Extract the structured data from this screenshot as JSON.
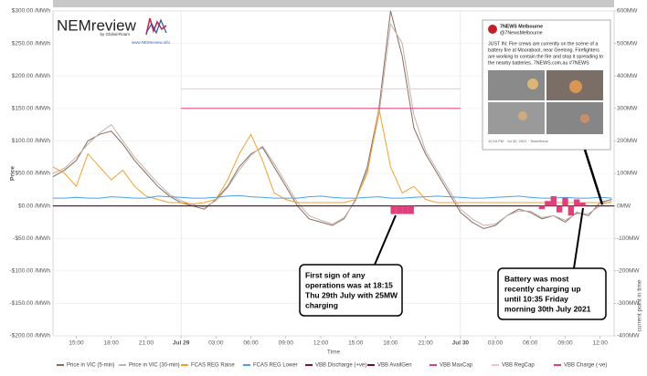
{
  "chart_data": {
    "type": "line",
    "ylabel": "Price",
    "xlabel": "Time",
    "marker_label": "current point in time",
    "xlim": [
      13,
      61.2
    ],
    "xticks": [
      {
        "value": 15,
        "label": "15:00"
      },
      {
        "value": 18,
        "label": "18:00"
      },
      {
        "value": 21,
        "label": "21:00"
      },
      {
        "value": 24,
        "label": "Jul 29"
      },
      {
        "value": 27,
        "label": "03:00"
      },
      {
        "value": 30,
        "label": "06:00"
      },
      {
        "value": 33,
        "label": "09:00"
      },
      {
        "value": 36,
        "label": "12:00"
      },
      {
        "value": 39,
        "label": "15:00"
      },
      {
        "value": 42,
        "label": "18:00"
      },
      {
        "value": 45,
        "label": "21:00"
      },
      {
        "value": 48,
        "label": "Jul 30"
      },
      {
        "value": 51,
        "label": "03:00"
      },
      {
        "value": 54,
        "label": "06:00"
      },
      {
        "value": 57,
        "label": "09:00"
      },
      {
        "value": 60,
        "label": "12:00"
      }
    ],
    "ylim": [
      -200,
      300
    ],
    "yticks": [
      {
        "value": 300,
        "label": "$300.00 /MWh"
      },
      {
        "value": 250,
        "label": "$250.00 /MWh"
      },
      {
        "value": 200,
        "label": "$200.00 /MWh"
      },
      {
        "value": 150,
        "label": "$150.00 /MWh"
      },
      {
        "value": 100,
        "label": "$100.00 /MWh"
      },
      {
        "value": 50,
        "label": "$50.00 /MWh"
      },
      {
        "value": 0,
        "label": "$0.00 /MWh"
      },
      {
        "value": -50,
        "label": "-$50.00 /MWh"
      },
      {
        "value": -100,
        "label": "-$100.00 /MWh"
      },
      {
        "value": -150,
        "label": "-$150.00 /MWh"
      },
      {
        "value": -200,
        "label": "-$200.00 /MWh"
      }
    ],
    "y2lim": [
      -400,
      600
    ],
    "y2ticks": [
      {
        "value": 600,
        "label": "600MW"
      },
      {
        "value": 500,
        "label": "500MW"
      },
      {
        "value": 400,
        "label": "400MW"
      },
      {
        "value": 300,
        "label": "300MW"
      },
      {
        "value": 200,
        "label": "200MW"
      },
      {
        "value": 100,
        "label": "100MW"
      },
      {
        "value": 0,
        "label": "0MW"
      },
      {
        "value": -100,
        "label": "-100MW"
      },
      {
        "value": -200,
        "label": "-200MW"
      },
      {
        "value": -300,
        "label": "-300MW"
      },
      {
        "value": -400,
        "label": "-400MW"
      }
    ],
    "grid": true,
    "x": [
      13,
      14,
      15,
      16,
      17,
      18,
      19,
      20,
      21,
      22,
      23,
      24,
      25,
      26,
      27,
      28,
      29,
      30,
      31,
      32,
      33,
      34,
      35,
      36,
      37,
      38,
      39,
      40,
      41,
      42,
      43,
      44,
      45,
      46,
      47,
      48,
      49,
      50,
      51,
      52,
      53,
      54,
      55,
      56,
      57,
      58,
      59,
      60,
      61
    ],
    "series": [
      {
        "name": "Price in VIC (5-min)",
        "color": "#8b6a5c",
        "style": "line",
        "values": [
          45,
          55,
          70,
          100,
          110,
          115,
          95,
          70,
          50,
          30,
          15,
          5,
          0,
          -5,
          10,
          30,
          60,
          80,
          90,
          60,
          30,
          0,
          -20,
          -25,
          -30,
          -20,
          10,
          60,
          150,
          300,
          230,
          120,
          80,
          50,
          20,
          -10,
          -25,
          -35,
          -30,
          -15,
          -5,
          -10,
          -20,
          -15,
          -25,
          -10,
          -15,
          5,
          10
        ]
      },
      {
        "name": "Price in VIC (30-min)",
        "color": "#bfb3ad",
        "style": "line",
        "values": [
          50,
          58,
          75,
          95,
          112,
          125,
          100,
          75,
          55,
          35,
          18,
          8,
          2,
          -2,
          8,
          28,
          55,
          78,
          92,
          65,
          35,
          5,
          -15,
          -22,
          -28,
          -18,
          8,
          55,
          140,
          280,
          250,
          140,
          85,
          55,
          25,
          -5,
          -20,
          -30,
          -28,
          -15,
          -8,
          -8,
          -18,
          -15,
          -22,
          -12,
          -12,
          0,
          8
        ]
      },
      {
        "name": "FCAS REG Raise",
        "color": "#f0a030",
        "style": "line",
        "values": [
          60,
          50,
          30,
          80,
          60,
          40,
          55,
          30,
          15,
          10,
          5,
          5,
          3,
          5,
          10,
          40,
          80,
          110,
          70,
          20,
          10,
          5,
          5,
          5,
          5,
          5,
          10,
          50,
          150,
          60,
          20,
          30,
          10,
          5,
          5,
          5,
          5,
          5,
          5,
          5,
          5,
          5,
          5,
          5,
          5,
          5,
          5,
          5,
          5
        ]
      },
      {
        "name": "FCAS REG Lower",
        "color": "#4aa0e8",
        "style": "line",
        "values": [
          12,
          12,
          13,
          12,
          12,
          14,
          13,
          12,
          12,
          15,
          14,
          13,
          12,
          12,
          13,
          15,
          16,
          14,
          13,
          12,
          12,
          12,
          14,
          15,
          13,
          12,
          12,
          13,
          14,
          12,
          12,
          13,
          14,
          15,
          14,
          13,
          12,
          12,
          13,
          14,
          15,
          13,
          12,
          12,
          13,
          12,
          12,
          13,
          12
        ]
      },
      {
        "name": "VBB Discharge (+ve)",
        "color": "#7a1030",
        "style": "line",
        "axis": "y2",
        "x": [
          13,
          61.2
        ],
        "values": [
          0,
          0
        ]
      },
      {
        "name": "VBB AvailGen",
        "color": "#6b0f2a",
        "style": "line",
        "axis": "y2",
        "x": [
          13,
          61.2
        ],
        "values": [
          0,
          0
        ]
      },
      {
        "name": "VBB MaxCap",
        "color": "#e0407a",
        "style": "line",
        "axis": "y2",
        "x": [
          24,
          48
        ],
        "values": [
          300,
          300
        ]
      },
      {
        "name": "VBB RegCap",
        "color": "#f4c0d0",
        "style": "line",
        "axis": "y2",
        "x": [
          24,
          48
        ],
        "values": [
          360,
          360
        ]
      },
      {
        "name": "VBB Charge (-ve)",
        "color": "#e0407a",
        "style": "bar",
        "axis": "y2",
        "x": [
          42.25,
          42.75,
          43.25,
          43.75,
          55,
          55.5,
          56,
          56.5,
          57,
          57.5,
          58,
          58.5
        ],
        "values": [
          -25,
          -25,
          -25,
          -25,
          -10,
          15,
          30,
          -20,
          25,
          -30,
          20,
          10
        ]
      }
    ]
  },
  "logo": {
    "name": "NEMreview",
    "by": "by Global-Roam",
    "url": "www.NEMreview.info"
  },
  "tweet": {
    "account": "7NEWS Melbourne",
    "handle": "@7NewsMelbourne",
    "lines": [
      "JUST IN: Fire crews are currently on the scene of a",
      "battery fire at Moorabool, near Geelong. Firefighters",
      "are working to contain the fire and stop it spreading to",
      "the nearby batteries. 7NEWS.com.au #7NEWS"
    ],
    "footer": "10:18 PM · Jul 30, 2021 · TweetDeck"
  },
  "annotations": [
    {
      "lines": [
        "First sign of any",
        "operations was at 18:15",
        "Thu 29th July with 25MW",
        "charging"
      ]
    },
    {
      "lines": [
        "Battery was most",
        "recently charging up",
        "until 10:35 Friday",
        "morning 30th July 2021"
      ]
    }
  ]
}
